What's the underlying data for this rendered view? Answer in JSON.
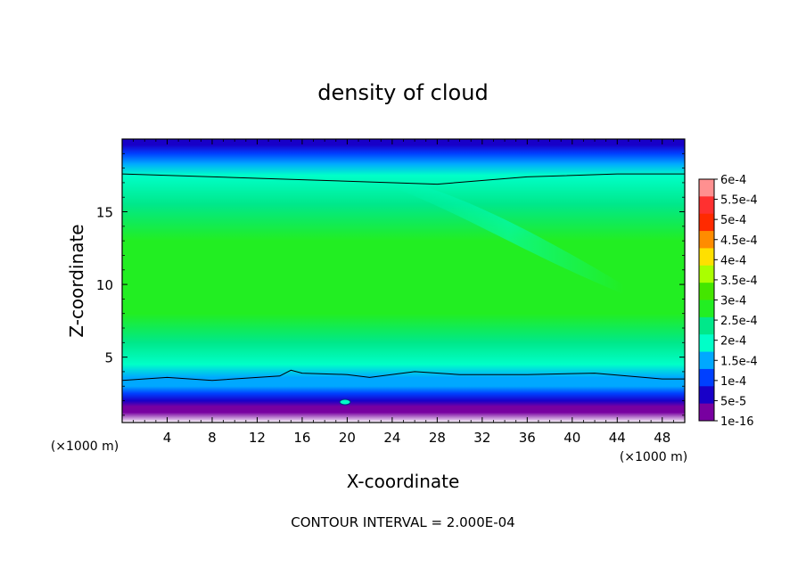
{
  "chart_data": {
    "type": "heatmap",
    "title": "density of cloud",
    "xlabel": "X-coordinate",
    "ylabel": "Z-coordinate",
    "x_unit": "(×1000 m)",
    "y_unit": "(×1000 m)",
    "xlim": [
      0,
      50
    ],
    "ylim": [
      0.5,
      20
    ],
    "x_ticks": [
      4,
      8,
      12,
      16,
      20,
      24,
      28,
      32,
      36,
      40,
      44,
      48
    ],
    "y_ticks": [
      5,
      10,
      15
    ],
    "footnote": "CONTOUR INTERVAL = 2.000E-04",
    "colorbar": {
      "labels": [
        "6e-4",
        "5.5e-4",
        "5e-4",
        "4.5e-4",
        "4e-4",
        "3.5e-4",
        "3e-4",
        "2.5e-4",
        "2e-4",
        "1.5e-4",
        "1e-4",
        "5e-5",
        "1e-16"
      ],
      "values": [
        0.0006,
        0.00055,
        0.0005,
        0.00045,
        0.0004,
        0.00035,
        0.0003,
        0.00025,
        0.0002,
        0.00015,
        0.0001,
        5e-05,
        1e-16
      ],
      "colors": [
        "#ff9090",
        "#ff3030",
        "#ff2a00",
        "#ff8c00",
        "#ffe000",
        "#aaff00",
        "#44e600",
        "#22ee22",
        "#00e88a",
        "#00ffc8",
        "#00a8ff",
        "#0040ff",
        "#1800c8",
        "#7800a0"
      ]
    },
    "profile": [
      {
        "z": 0.5,
        "v": null
      },
      {
        "z": 1.2,
        "v": 3e-06
      },
      {
        "z": 1.6,
        "v": 4e-05
      },
      {
        "z": 2.0,
        "v": 7e-05
      },
      {
        "z": 2.5,
        "v": 0.00011
      },
      {
        "z": 3.0,
        "v": 0.00015
      },
      {
        "z": 3.6,
        "v": 0.00019
      },
      {
        "z": 4.5,
        "v": 0.000225
      },
      {
        "z": 6.0,
        "v": 0.000265
      },
      {
        "z": 8.0,
        "v": 0.00031
      },
      {
        "z": 10.0,
        "v": 0.00033
      },
      {
        "z": 13.0,
        "v": 0.00031
      },
      {
        "z": 15.5,
        "v": 0.00026
      },
      {
        "z": 17.5,
        "v": 0.000205
      },
      {
        "z": 18.3,
        "v": 0.00016
      },
      {
        "z": 19.0,
        "v": 0.00011
      },
      {
        "z": 19.6,
        "v": 7e-05
      },
      {
        "z": 20.0,
        "v": 5e-05
      }
    ],
    "contour_lines": [
      {
        "level": 0.0002,
        "points": [
          [
            0,
            17.6
          ],
          [
            12,
            17.3
          ],
          [
            28,
            16.9
          ],
          [
            36,
            17.4
          ],
          [
            44,
            17.6
          ],
          [
            50,
            17.6
          ]
        ]
      },
      {
        "level": 0.0002,
        "points": [
          [
            0,
            3.4
          ],
          [
            4,
            3.6
          ],
          [
            8,
            3.4
          ],
          [
            14,
            3.7
          ],
          [
            15,
            4.1
          ],
          [
            16,
            3.9
          ],
          [
            20,
            3.8
          ],
          [
            22,
            3.6
          ],
          [
            26,
            4.0
          ],
          [
            30,
            3.8
          ],
          [
            36,
            3.8
          ],
          [
            42,
            3.9
          ],
          [
            48,
            3.5
          ],
          [
            50,
            3.5
          ]
        ]
      }
    ]
  }
}
